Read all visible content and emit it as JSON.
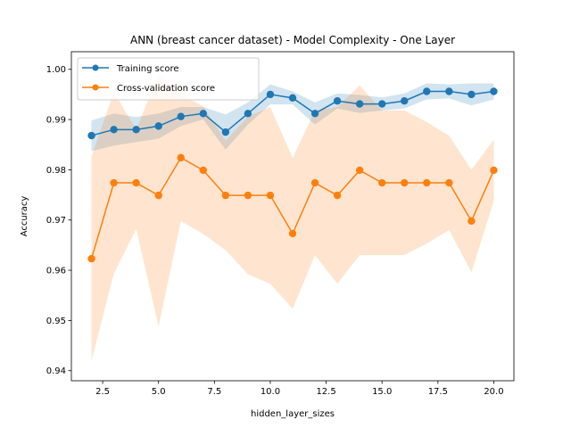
{
  "chart_data": {
    "type": "line",
    "title": "ANN (breast cancer dataset) - Model Complexity - One Layer",
    "xlabel": "hidden_layer_sizes",
    "ylabel": "Accuracy",
    "xlim": [
      1.1,
      20.9
    ],
    "ylim": [
      0.938,
      1.0035
    ],
    "xticks": [
      2.5,
      5.0,
      7.5,
      10.0,
      12.5,
      15.0,
      17.5,
      20.0
    ],
    "xtick_labels": [
      "2.5",
      "5.0",
      "7.5",
      "10.0",
      "12.5",
      "15.0",
      "17.5",
      "20.0"
    ],
    "yticks": [
      0.94,
      0.95,
      0.96,
      0.97,
      0.98,
      0.99,
      1.0
    ],
    "ytick_labels": [
      "0.94",
      "0.95",
      "0.96",
      "0.97",
      "0.98",
      "0.99",
      "1.00"
    ],
    "grid": false,
    "legend_position": "top-left",
    "x": [
      2,
      3,
      4,
      5,
      6,
      7,
      8,
      9,
      10,
      11,
      12,
      13,
      14,
      15,
      16,
      17,
      18,
      19,
      20
    ],
    "series": [
      {
        "name": "Training score",
        "color": "#1f77b4",
        "values": [
          0.9868,
          0.988,
          0.988,
          0.9887,
          0.9906,
          0.9912,
          0.9875,
          0.9912,
          0.995,
          0.9943,
          0.9912,
          0.9937,
          0.9931,
          0.9931,
          0.9937,
          0.9956,
          0.9956,
          0.995,
          0.9956
        ],
        "band_lower": [
          0.9837,
          0.9848,
          0.9855,
          0.9862,
          0.9887,
          0.99,
          0.984,
          0.989,
          0.993,
          0.993,
          0.989,
          0.9922,
          0.9913,
          0.9918,
          0.9922,
          0.994,
          0.9942,
          0.9928,
          0.994
        ],
        "band_upper": [
          0.9898,
          0.9912,
          0.9905,
          0.9912,
          0.9925,
          0.9925,
          0.991,
          0.9934,
          0.997,
          0.9956,
          0.9934,
          0.9952,
          0.9949,
          0.9944,
          0.9952,
          0.9972,
          0.997,
          0.9972,
          0.9972
        ]
      },
      {
        "name": "Cross-validation score",
        "color": "#ff7f0e",
        "values": [
          0.9623,
          0.9774,
          0.9774,
          0.9749,
          0.9824,
          0.9799,
          0.9749,
          0.9749,
          0.9749,
          0.9673,
          0.9774,
          0.9749,
          0.9799,
          0.9774,
          0.9774,
          0.9774,
          0.9774,
          0.9698,
          0.9799
        ],
        "band_lower": [
          0.942,
          0.9593,
          0.9682,
          0.9488,
          0.9698,
          0.9672,
          0.964,
          0.9592,
          0.9573,
          0.9523,
          0.963,
          0.9573,
          0.963,
          0.963,
          0.963,
          0.9653,
          0.968,
          0.9596,
          0.9738
        ],
        "band_upper": [
          0.9826,
          0.9955,
          0.988,
          0.999,
          0.995,
          0.9926,
          0.9858,
          0.9906,
          0.9925,
          0.9823,
          0.9918,
          0.9925,
          0.9968,
          0.9918,
          0.9918,
          0.9895,
          0.9868,
          0.98,
          0.986
        ]
      }
    ]
  }
}
